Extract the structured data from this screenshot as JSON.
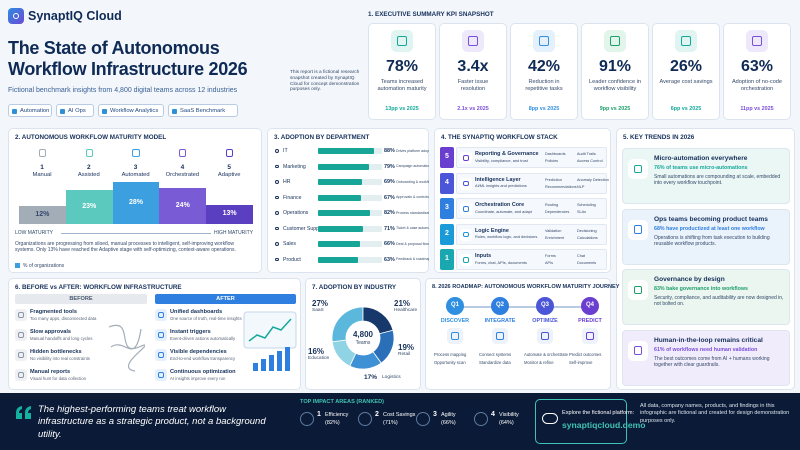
{
  "header": {
    "brand": "SynaptIQ Cloud",
    "title": "The State of Autonomous Workflow Infrastructure 2026",
    "subtitle": "Fictional benchmark insights from 4,800 digital teams across 12 industries",
    "tags": [
      "Automation",
      "AI Ops",
      "Workflow Analytics",
      "SaaS Benchmark"
    ],
    "note": "This report is a fictional research snapshot created by SynaptIQ Cloud for concept demonstration purposes only."
  },
  "kpis": {
    "heading": "1. EXECUTIVE SUMMARY KPI SNAPSHOT",
    "items": [
      {
        "value": "78%",
        "label": "Teams increased automation maturity",
        "delta": "13pp vs 2025"
      },
      {
        "value": "3.4x",
        "label": "Faster issue resolution",
        "delta": "2.1x vs 2025"
      },
      {
        "value": "42%",
        "label": "Reduction in repetitive tasks",
        "delta": "8pp vs 2025"
      },
      {
        "value": "91%",
        "label": "Leader confidence in workflow visibility",
        "delta": "9pp vs 2025"
      },
      {
        "value": "26%",
        "label": "Average cost savings",
        "delta": "6pp vs 2025"
      },
      {
        "value": "63%",
        "label": "Adoption of no-code orchestration",
        "delta": "11pp vs 2025"
      }
    ]
  },
  "maturity": {
    "heading": "2. AUTONOMOUS WORKFLOW MATURITY MODEL",
    "numbers": [
      "1",
      "2",
      "3",
      "4",
      "5"
    ],
    "names": [
      "Manual",
      "Assisted",
      "Automated",
      "Orchestrated",
      "Adaptive"
    ],
    "values": [
      12,
      23,
      28,
      24,
      13
    ],
    "value_labels": [
      "12%",
      "23%",
      "28%",
      "24%",
      "13%"
    ],
    "colors": [
      "#a3adb8",
      "#5cc9bf",
      "#3b9fe0",
      "#7a5bd6",
      "#5a3fc0"
    ],
    "low_label": "LOW MATURITY",
    "high_label": "HIGH MATURITY",
    "note": "Organizations are progressing from siloed, manual processes to intelligent, self-improving workflow systems. Only 13% have reached the Adaptive stage with self-optimizing, context-aware operations.",
    "legend": "% of organizations"
  },
  "departments": {
    "heading": "3. ADOPTION BY DEPARTMENT",
    "categories": [
      "IT",
      "Marketing",
      "HR",
      "Finance",
      "Operations",
      "Customer Support",
      "Sales",
      "Product"
    ],
    "values": [
      88,
      79,
      69,
      67,
      82,
      71,
      66,
      63
    ],
    "value_labels": [
      "88%",
      "79%",
      "69%",
      "67%",
      "82%",
      "71%",
      "66%",
      "63%"
    ],
    "descriptions": [
      "Drives platform adoption",
      "Campaign automation",
      "Onboarding & workflow",
      "Approvals & controls",
      "Process standardization",
      "Ticket & case automation",
      "Deal & proposal flows",
      "Feedback & roadmap ops"
    ]
  },
  "stack": {
    "heading": "4. THE SYNAPTIQ WORKFLOW STACK",
    "layers": [
      {
        "number": "5",
        "name": "Reporting & Governance",
        "desc": "Visibility, compliance, and trust",
        "items": [
          "Dashboards",
          "Audit Trails",
          "Policies",
          "Access Control"
        ]
      },
      {
        "number": "4",
        "name": "Intelligence Layer",
        "desc": "AI/ML insights and predictions",
        "items": [
          "Prediction",
          "Anomaly Detection",
          "Recommendations",
          "NLP"
        ]
      },
      {
        "number": "3",
        "name": "Orchestration Core",
        "desc": "Coordinate, automate, and adapt",
        "items": [
          "Routing",
          "Scheduling",
          "Dependencies",
          "SLAs"
        ]
      },
      {
        "number": "2",
        "name": "Logic Engine",
        "desc": "Rules, workflow logic, and decisions",
        "items": [
          "Validation",
          "Decisioning",
          "Enrichment",
          "Calculations"
        ]
      },
      {
        "number": "1",
        "name": "Inputs",
        "desc": "Forms, chat, APIs, documents",
        "items": [
          "Forms",
          "Chat",
          "APIs",
          "Documents"
        ]
      }
    ]
  },
  "trends": {
    "heading": "5. KEY TRENDS IN 2026",
    "items": [
      {
        "title": "Micro-automation everywhere",
        "highlight": "76% of teams use micro-automations",
        "desc": "Small automations are compounding at scale, embedded into every workflow touchpoint."
      },
      {
        "title": "Ops teams becoming product teams",
        "highlight": "68% have productized at least one workflow",
        "desc": "Operations is shifting from task execution to building reusable workflow products."
      },
      {
        "title": "Governance by design",
        "highlight": "83% bake governance into workflows",
        "desc": "Security, compliance, and auditability are now designed in, not bolted on."
      },
      {
        "title": "Human-in-the-loop remains critical",
        "highlight": "61% of workflows need human validation",
        "desc": "The best outcomes come from AI + humans working together with clear guardrails."
      }
    ]
  },
  "before_after": {
    "heading": "6. BEFORE vs AFTER: WORKFLOW INFRASTRUCTURE",
    "before_label": "BEFORE",
    "after_label": "AFTER",
    "before": [
      {
        "title": "Fragmented tools",
        "desc": "Too many apps, disconnected data"
      },
      {
        "title": "Slow approvals",
        "desc": "Manual handoffs and long cycles"
      },
      {
        "title": "Hidden bottlenecks",
        "desc": "No visibility into real constraints"
      },
      {
        "title": "Manual reports",
        "desc": "Visual hunt for data collection"
      }
    ],
    "after": [
      {
        "title": "Unified dashboards",
        "desc": "One source of truth, real-time insights"
      },
      {
        "title": "Instant triggers",
        "desc": "Event-driven actions automatically"
      },
      {
        "title": "Visible dependencies",
        "desc": "End-to-end workflow transparency"
      },
      {
        "title": "Continuous optimization",
        "desc": "AI insights improve every run"
      }
    ]
  },
  "industry": {
    "heading": "7. ADOPTION BY INDUSTRY",
    "categories": [
      "SaaS",
      "Healthcare",
      "Retail",
      "Logistics",
      "Education"
    ],
    "values": [
      27,
      21,
      19,
      17,
      16
    ],
    "value_labels": [
      "27%",
      "21%",
      "19%",
      "17%",
      "16%"
    ],
    "colors": [
      "#5bb8dc",
      "#17386b",
      "#2a6fb8",
      "#3f91d6",
      "#8fd3e4"
    ],
    "center_value": "4,800",
    "center_label": "Teams"
  },
  "roadmap": {
    "heading": "8. 2026 ROADMAP: AUTONOMOUS WORKFLOW MATURITY JOURNEY",
    "quarters": [
      {
        "quarter": "Q1",
        "name": "DISCOVER",
        "items": [
          "Process mapping",
          "Opportunity scan"
        ]
      },
      {
        "quarter": "Q2",
        "name": "INTEGRATE",
        "items": [
          "Connect systems",
          "Standardize data"
        ]
      },
      {
        "quarter": "Q3",
        "name": "OPTIMIZE",
        "items": [
          "Automate & orchestrate",
          "Monitor & refine"
        ]
      },
      {
        "quarter": "Q4",
        "name": "PREDICT",
        "items": [
          "Predict outcomes",
          "Self-improve"
        ]
      }
    ]
  },
  "footer": {
    "quote": "The highest-performing teams treat workflow infrastructure as a strategic product, not a background utility.",
    "impact_heading": "TOP IMPACT AREAS (RANKED)",
    "impact": [
      {
        "rank": "1",
        "name": "Efficiency",
        "share": "(82%)"
      },
      {
        "rank": "2",
        "name": "Cost Savings",
        "share": "(71%)"
      },
      {
        "rank": "3",
        "name": "Agility",
        "share": "(66%)"
      },
      {
        "rank": "4",
        "name": "Visibility",
        "share": "(64%)"
      }
    ],
    "explore_label": "Explore the fictional platform:",
    "explore_url": "synaptiqcloud.demo",
    "disclaimer": "All data, company names, products, and findings in this infographic are fictional and created for design demonstration purposes only."
  }
}
